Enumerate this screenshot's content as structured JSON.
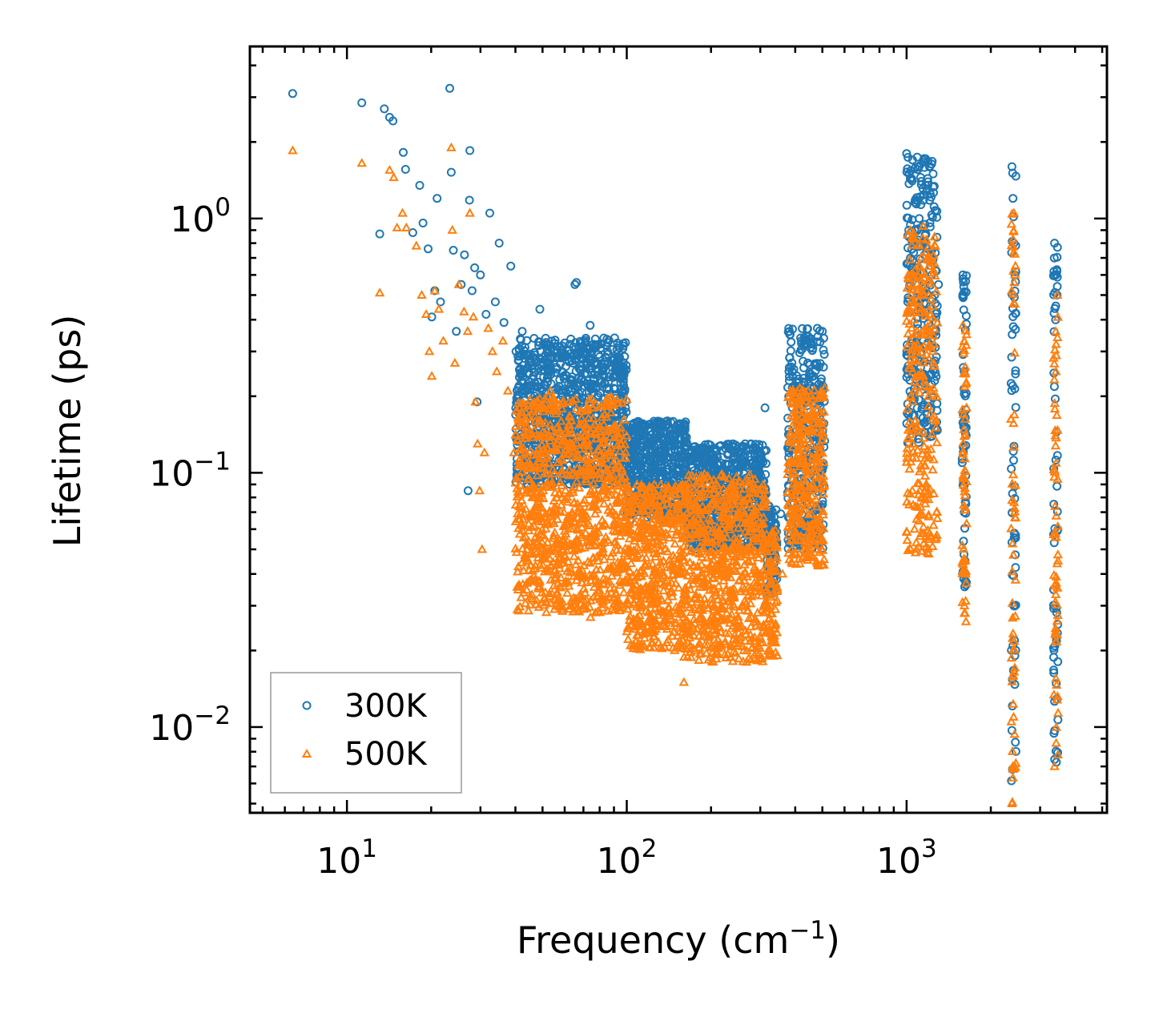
{
  "chart_data": {
    "type": "scatter",
    "title": "",
    "xlabel": "Frequency (cm",
    "xlabel_sup": "−1",
    "xlabel_suffix": ")",
    "ylabel": "Lifetime (ps)",
    "xscale": "log",
    "yscale": "log",
    "xlim": [
      4.5,
      5200
    ],
    "ylim": [
      0.0046,
      4.75
    ],
    "x_ticks": [
      {
        "value": 10,
        "base": "10",
        "exp": "1"
      },
      {
        "value": 100,
        "base": "10",
        "exp": "2"
      },
      {
        "value": 1000,
        "base": "10",
        "exp": "3"
      }
    ],
    "y_ticks": [
      {
        "value": 1,
        "base": "10",
        "exp": "0"
      },
      {
        "value": 0.1,
        "base": "10",
        "exp": "−1"
      },
      {
        "value": 0.01,
        "base": "10",
        "exp": "−2"
      }
    ],
    "legend": {
      "position": "lower-left"
    },
    "series": [
      {
        "name": "300K",
        "marker": "circle",
        "color": "#1f77b4",
        "x": [
          6.4,
          11.3,
          13.1,
          13.6,
          14.2,
          14.6,
          15.9,
          16.2,
          17.2,
          18.2,
          18.7,
          19.5,
          20.1,
          20.6,
          21.0,
          21.6,
          23.3,
          23.6,
          24.0,
          24.6,
          25.6,
          26.3,
          27.1,
          27.4,
          27.5,
          28.0,
          28.6,
          29.2,
          30.0,
          31.4,
          32.4,
          33.9,
          35.0,
          36.4,
          38.5,
          40.2,
          42.3,
          44.1,
          46.7,
          48.9,
          51.2,
          53.5,
          56.0,
          58.9,
          62.0,
          65.3,
          66.1,
          66.8,
          70.1,
          74.0,
          78.6,
          83.0,
          88.5,
          94.3,
          99.0,
          105,
          115,
          127,
          140,
          155,
          170,
          183,
          196,
          210,
          225,
          240,
          258,
          278,
          300,
          312,
          320,
          335,
          355,
          380,
          405,
          430,
          455,
          480,
          500,
          1000,
          1020,
          1050,
          1080,
          1110,
          1150,
          1190,
          1230,
          1260,
          1300,
          1590,
          1600,
          1620,
          2380,
          2400,
          2420,
          2440,
          3380,
          3420,
          3460
        ],
        "y": [
          3.1,
          2.85,
          0.87,
          2.7,
          2.5,
          2.42,
          1.82,
          1.56,
          0.88,
          1.35,
          0.96,
          0.76,
          0.41,
          0.52,
          1.2,
          0.47,
          3.25,
          1.52,
          0.75,
          0.36,
          0.55,
          0.72,
          0.085,
          1.18,
          1.85,
          0.52,
          0.64,
          0.19,
          0.6,
          0.42,
          1.05,
          0.47,
          0.8,
          0.39,
          0.65,
          0.3,
          0.36,
          0.29,
          0.25,
          0.44,
          0.22,
          0.31,
          0.26,
          0.2,
          0.18,
          0.55,
          0.56,
          0.2,
          0.28,
          0.38,
          0.25,
          0.24,
          0.26,
          0.19,
          0.18,
          0.15,
          0.14,
          0.12,
          0.155,
          0.11,
          0.09,
          0.1,
          0.083,
          0.095,
          0.089,
          0.13,
          0.12,
          0.13,
          0.12,
          0.18,
          0.043,
          0.055,
          0.069,
          0.12,
          0.14,
          0.16,
          0.22,
          0.37,
          0.36,
          1.8,
          1.5,
          1.7,
          1.15,
          1.0,
          0.55,
          0.5,
          0.6,
          0.5,
          0.55,
          0.6,
          0.5,
          0.15,
          1.6,
          1.2,
          0.8,
          0.6,
          0.8,
          0.6,
          0.77
        ],
        "bands": [
          {
            "x": [
              40,
              100
            ],
            "y": [
              0.09,
              0.34
            ]
          },
          {
            "x": [
              100,
              165
            ],
            "y": [
              0.065,
              0.16
            ]
          },
          {
            "x": [
              165,
              315
            ],
            "y": [
              0.05,
              0.13
            ]
          },
          {
            "x": [
              315,
              345
            ],
            "y": [
              0.033,
              0.075
            ]
          },
          {
            "x": [
              375,
              510
            ],
            "y": [
              0.05,
              0.37
            ]
          },
          {
            "x": [
              1000,
              1290
            ],
            "y": [
              0.13,
              1.75
            ]
          },
          {
            "x": [
              1580,
              1640
            ],
            "y": [
              0.03,
              0.62
            ]
          },
          {
            "x": [
              2360,
              2460
            ],
            "y": [
              0.006,
              1.6
            ]
          },
          {
            "x": [
              3350,
              3480
            ],
            "y": [
              0.007,
              0.8
            ]
          }
        ]
      },
      {
        "name": "500K",
        "marker": "triangle",
        "color": "#ff7f0e",
        "x": [
          6.4,
          11.3,
          13.1,
          14.2,
          14.7,
          15.1,
          15.8,
          16.3,
          17.7,
          18.5,
          19.2,
          19.7,
          20.1,
          20.6,
          21.3,
          22.1,
          23.6,
          23.8,
          24.3,
          25.1,
          26.2,
          27.0,
          27.5,
          28.3,
          28.8,
          29.3,
          29.8,
          30.4,
          31.0,
          32.0,
          33.1,
          34.3,
          36.1,
          37.6,
          39.5,
          41.4,
          43.2,
          45.8,
          48.3,
          50.7,
          53.4,
          56.3,
          59.2,
          63.0,
          66.7,
          70.0,
          74.2,
          78.9,
          84.2,
          90.0,
          96.0,
          103,
          112,
          123,
          135,
          150,
          160,
          175,
          190,
          205,
          220,
          240,
          262,
          280,
          300,
          320,
          335,
          360,
          390,
          420,
          450,
          480,
          500,
          1000,
          1030,
          1060,
          1090,
          1120,
          1160,
          1200,
          1240,
          1280,
          1590,
          1610,
          1630,
          2380,
          2400,
          2420,
          2440,
          3380,
          3420,
          3460
        ],
        "y": [
          1.85,
          1.65,
          0.51,
          1.55,
          1.45,
          0.92,
          1.05,
          0.92,
          0.78,
          0.5,
          0.42,
          0.3,
          0.24,
          0.52,
          0.44,
          0.33,
          1.9,
          0.9,
          0.27,
          0.55,
          0.43,
          0.36,
          1.05,
          0.41,
          0.19,
          0.13,
          0.085,
          0.05,
          0.12,
          0.37,
          0.3,
          0.25,
          0.33,
          0.21,
          0.12,
          0.18,
          0.14,
          0.061,
          0.19,
          0.11,
          0.21,
          0.15,
          0.05,
          0.13,
          0.07,
          0.03,
          0.027,
          0.045,
          0.08,
          0.035,
          0.06,
          0.05,
          0.03,
          0.024,
          0.045,
          0.028,
          0.015,
          0.02,
          0.021,
          0.03,
          0.045,
          0.025,
          0.02,
          0.04,
          0.06,
          0.02,
          0.023,
          0.04,
          0.044,
          0.065,
          0.05,
          0.11,
          0.2,
          0.11,
          0.9,
          0.6,
          0.3,
          0.5,
          0.22,
          0.048,
          0.3,
          0.07,
          0.38,
          0.03,
          0.026,
          0.005,
          0.83,
          1.05,
          0.6,
          0.007,
          0.25,
          0.5
        ],
        "bands": [
          {
            "x": [
              40,
              100
            ],
            "y": [
              0.028,
              0.2
            ]
          },
          {
            "x": [
              100,
              160
            ],
            "y": [
              0.02,
              0.09
            ]
          },
          {
            "x": [
              160,
              315
            ],
            "y": [
              0.018,
              0.1
            ]
          },
          {
            "x": [
              315,
              345
            ],
            "y": [
              0.019,
              0.06
            ]
          },
          {
            "x": [
              375,
              510
            ],
            "y": [
              0.043,
              0.22
            ]
          },
          {
            "x": [
              1000,
              1290
            ],
            "y": [
              0.047,
              0.95
            ]
          },
          {
            "x": [
              1580,
              1640
            ],
            "y": [
              0.027,
              0.37
            ]
          },
          {
            "x": [
              2360,
              2460
            ],
            "y": [
              0.005,
              1.05
            ]
          },
          {
            "x": [
              3350,
              3480
            ],
            "y": [
              0.007,
              0.5
            ]
          }
        ]
      }
    ]
  }
}
